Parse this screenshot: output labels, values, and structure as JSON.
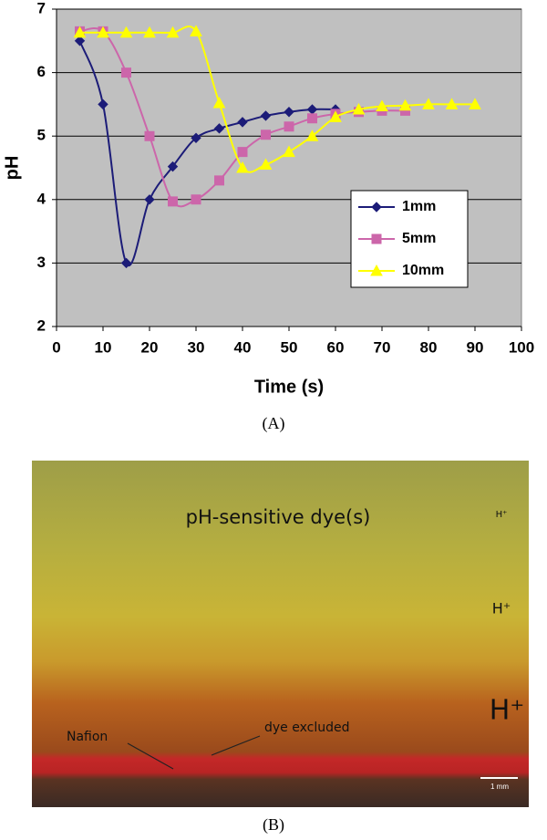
{
  "chart_data": {
    "type": "line",
    "xlabel": "Time (s)",
    "ylabel": "pH",
    "xlim": [
      0,
      100
    ],
    "xticks": [
      0,
      10,
      20,
      30,
      40,
      50,
      60,
      70,
      80,
      90,
      100
    ],
    "ylim": [
      2,
      7
    ],
    "yticks": [
      2,
      3,
      4,
      5,
      6,
      7
    ],
    "grid": true,
    "legend": "right",
    "background": "#c0c0c0",
    "series": [
      {
        "name": "1mm",
        "color": "#1c1c78",
        "marker": "diamond",
        "x": [
          5,
          10,
          15,
          20,
          25,
          30,
          35,
          40,
          45,
          50,
          55,
          60
        ],
        "values": [
          6.5,
          5.5,
          3.0,
          4.0,
          4.52,
          4.97,
          5.12,
          5.22,
          5.32,
          5.38,
          5.42,
          5.42
        ]
      },
      {
        "name": "5mm",
        "color": "#cc66aa",
        "marker": "square",
        "x": [
          5,
          10,
          15,
          20,
          25,
          30,
          35,
          40,
          45,
          50,
          55,
          60,
          65,
          70,
          75
        ],
        "values": [
          6.65,
          6.65,
          6.0,
          5.0,
          3.97,
          4.0,
          4.3,
          4.75,
          5.02,
          5.15,
          5.28,
          5.35,
          5.38,
          5.4,
          5.4
        ]
      },
      {
        "name": "10mm",
        "color": "#ffff00",
        "marker": "triangle",
        "x": [
          5,
          10,
          15,
          20,
          25,
          30,
          35,
          40,
          45,
          50,
          55,
          60,
          65,
          70,
          75,
          80,
          85,
          90
        ],
        "values": [
          6.63,
          6.63,
          6.63,
          6.63,
          6.63,
          6.65,
          5.52,
          4.5,
          4.55,
          4.75,
          5.0,
          5.3,
          5.42,
          5.47,
          5.48,
          5.5,
          5.5,
          5.5
        ]
      }
    ]
  },
  "chart_caption": "(A)",
  "photo": {
    "title": "pH-sensitive dye(s)",
    "proton_small": "H⁺",
    "proton_medium": "H⁺",
    "proton_large": "H⁺",
    "nafion": "Nafion",
    "dye_excluded": "dye excluded",
    "scale_bar": "1 mm",
    "caption": "(B)"
  }
}
